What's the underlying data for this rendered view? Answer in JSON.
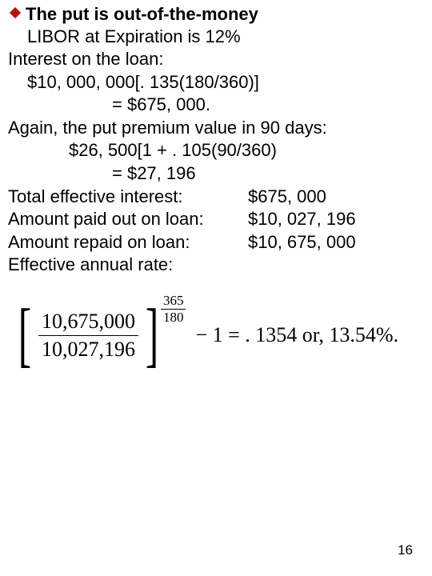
{
  "bullet": {
    "color": "#b9130b"
  },
  "heading": "The put is out-of-the-money",
  "lines": {
    "l1": "LIBOR at Expiration is 12%",
    "l2": "Interest on the loan:",
    "l3": "$10, 000, 000[. 135(180/360)]",
    "l4": "= $675, 000.",
    "l5": "Again, the put premium value in 90 days:",
    "l6": "$26, 500[1 + . 105(90/360)",
    "l7": "= $27, 196",
    "r1l": "Total effective interest:",
    "r1v": "$675, 000",
    "r2l": "Amount paid out on loan:",
    "r2v": "$10, 027, 196",
    "r3l": "Amount repaid on loan:",
    "r3v": "$10, 675, 000",
    "l8": "Effective annual rate:"
  },
  "formula": {
    "big_num": "10,675,000",
    "big_den": "10,027,196",
    "exp_num": "365",
    "exp_den": "180",
    "tail": "− 1 = . 1354  or,  13.54%."
  },
  "page": "16"
}
